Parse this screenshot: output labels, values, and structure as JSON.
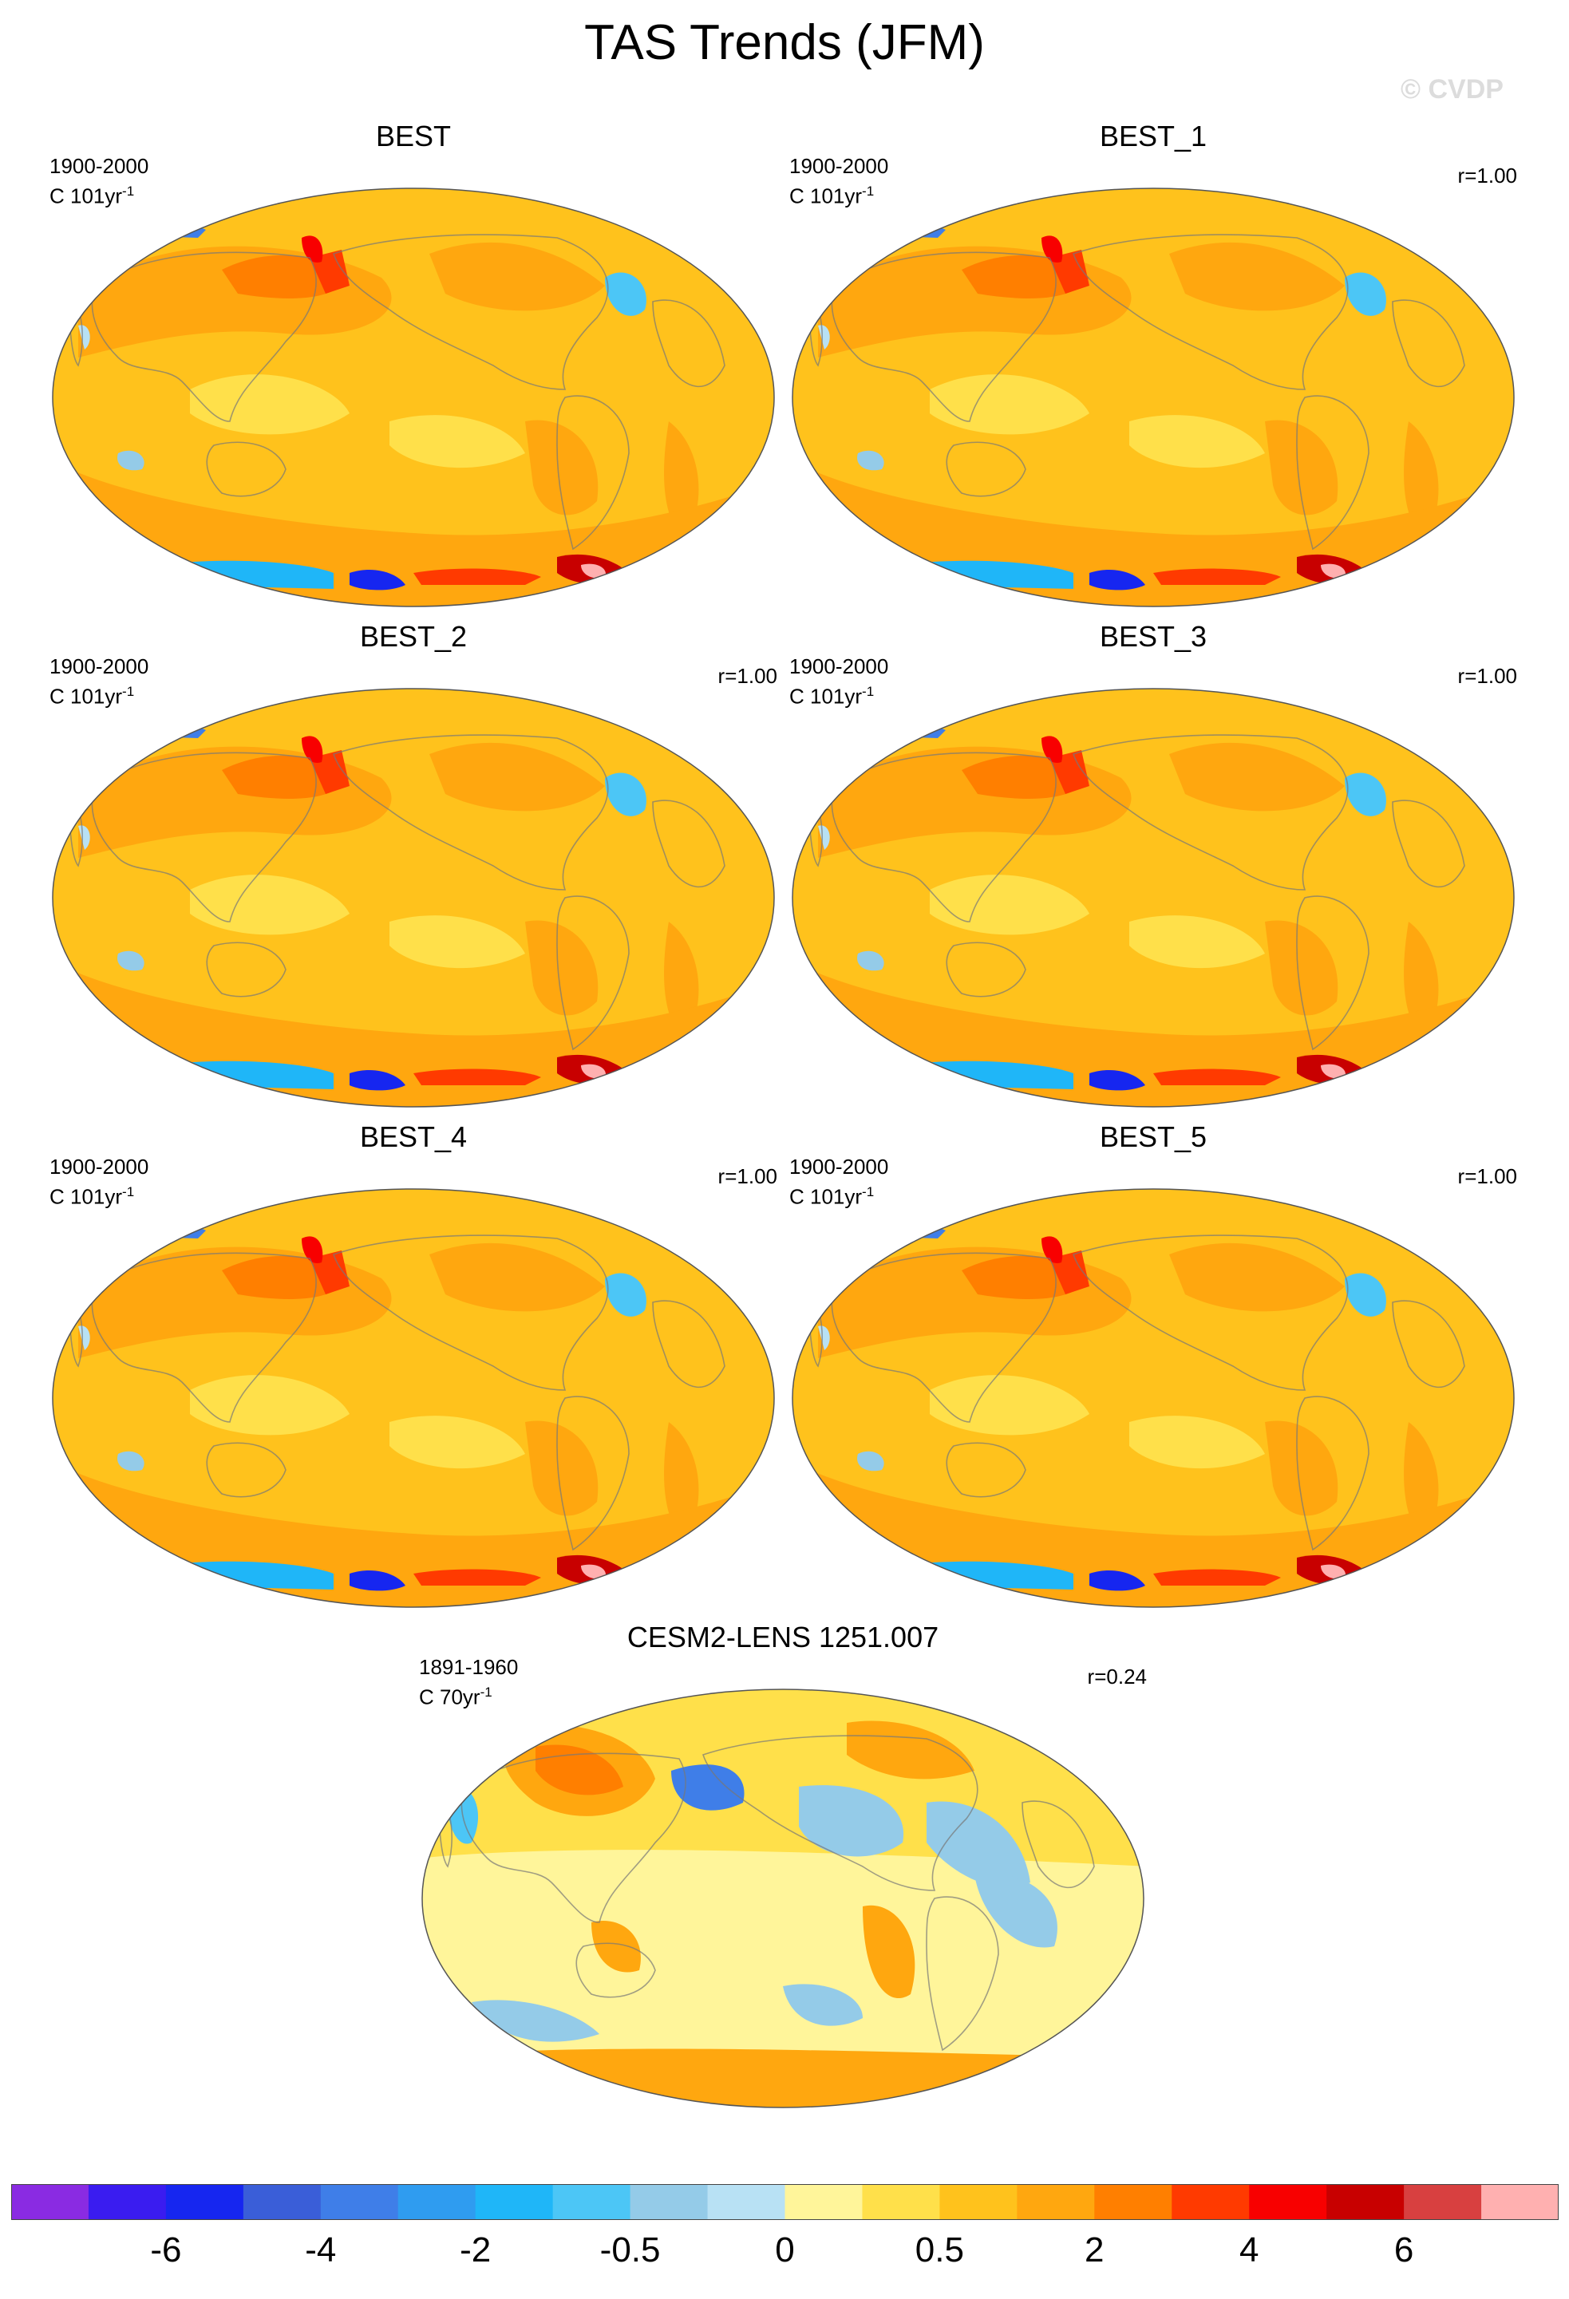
{
  "figure": {
    "title": "TAS Trends (JFM)",
    "credit": "© CVDP"
  },
  "panels": [
    {
      "title": "BEST",
      "period": "1900-2000",
      "units_main": "C 101yr",
      "units_sup": "-1",
      "corr": "",
      "style": "obs"
    },
    {
      "title": "BEST_1",
      "period": "1900-2000",
      "units_main": "C 101yr",
      "units_sup": "-1",
      "corr": "r=1.00",
      "style": "obs"
    },
    {
      "title": "BEST_2",
      "period": "1900-2000",
      "units_main": "C 101yr",
      "units_sup": "-1",
      "corr": "r=1.00",
      "style": "obs"
    },
    {
      "title": "BEST_3",
      "period": "1900-2000",
      "units_main": "C 101yr",
      "units_sup": "-1",
      "corr": "r=1.00",
      "style": "obs"
    },
    {
      "title": "BEST_4",
      "period": "1900-2000",
      "units_main": "C 101yr",
      "units_sup": "-1",
      "corr": "r=1.00",
      "style": "obs"
    },
    {
      "title": "BEST_5",
      "period": "1900-2000",
      "units_main": "C 101yr",
      "units_sup": "-1",
      "corr": "r=1.00",
      "style": "obs"
    },
    {
      "title": "CESM2-LENS 1251.007",
      "period": "1891-1960",
      "units_main": "C 70yr",
      "units_sup": "-1",
      "corr": "r=0.24",
      "style": "model"
    }
  ],
  "colorbar": {
    "colors": [
      "#8a2be2",
      "#3a1cf0",
      "#1626f0",
      "#3a5ed8",
      "#3f7ee8",
      "#2f9cf0",
      "#1fb6f8",
      "#4cc6f6",
      "#94cbe8",
      "#b8e1f4",
      "#fff59a",
      "#ffe04a",
      "#ffc21c",
      "#ffa70f",
      "#ff7f00",
      "#ff3a00",
      "#f80000",
      "#c80000",
      "#d84040",
      "#ffb0b0"
    ],
    "tick_labels": [
      "-6",
      "-4",
      "-2",
      "-0.5",
      "0",
      "0.5",
      "2",
      "4",
      "6"
    ],
    "tick_boundaries": [
      2,
      4,
      6,
      8,
      10,
      12,
      14,
      16,
      18
    ]
  }
}
